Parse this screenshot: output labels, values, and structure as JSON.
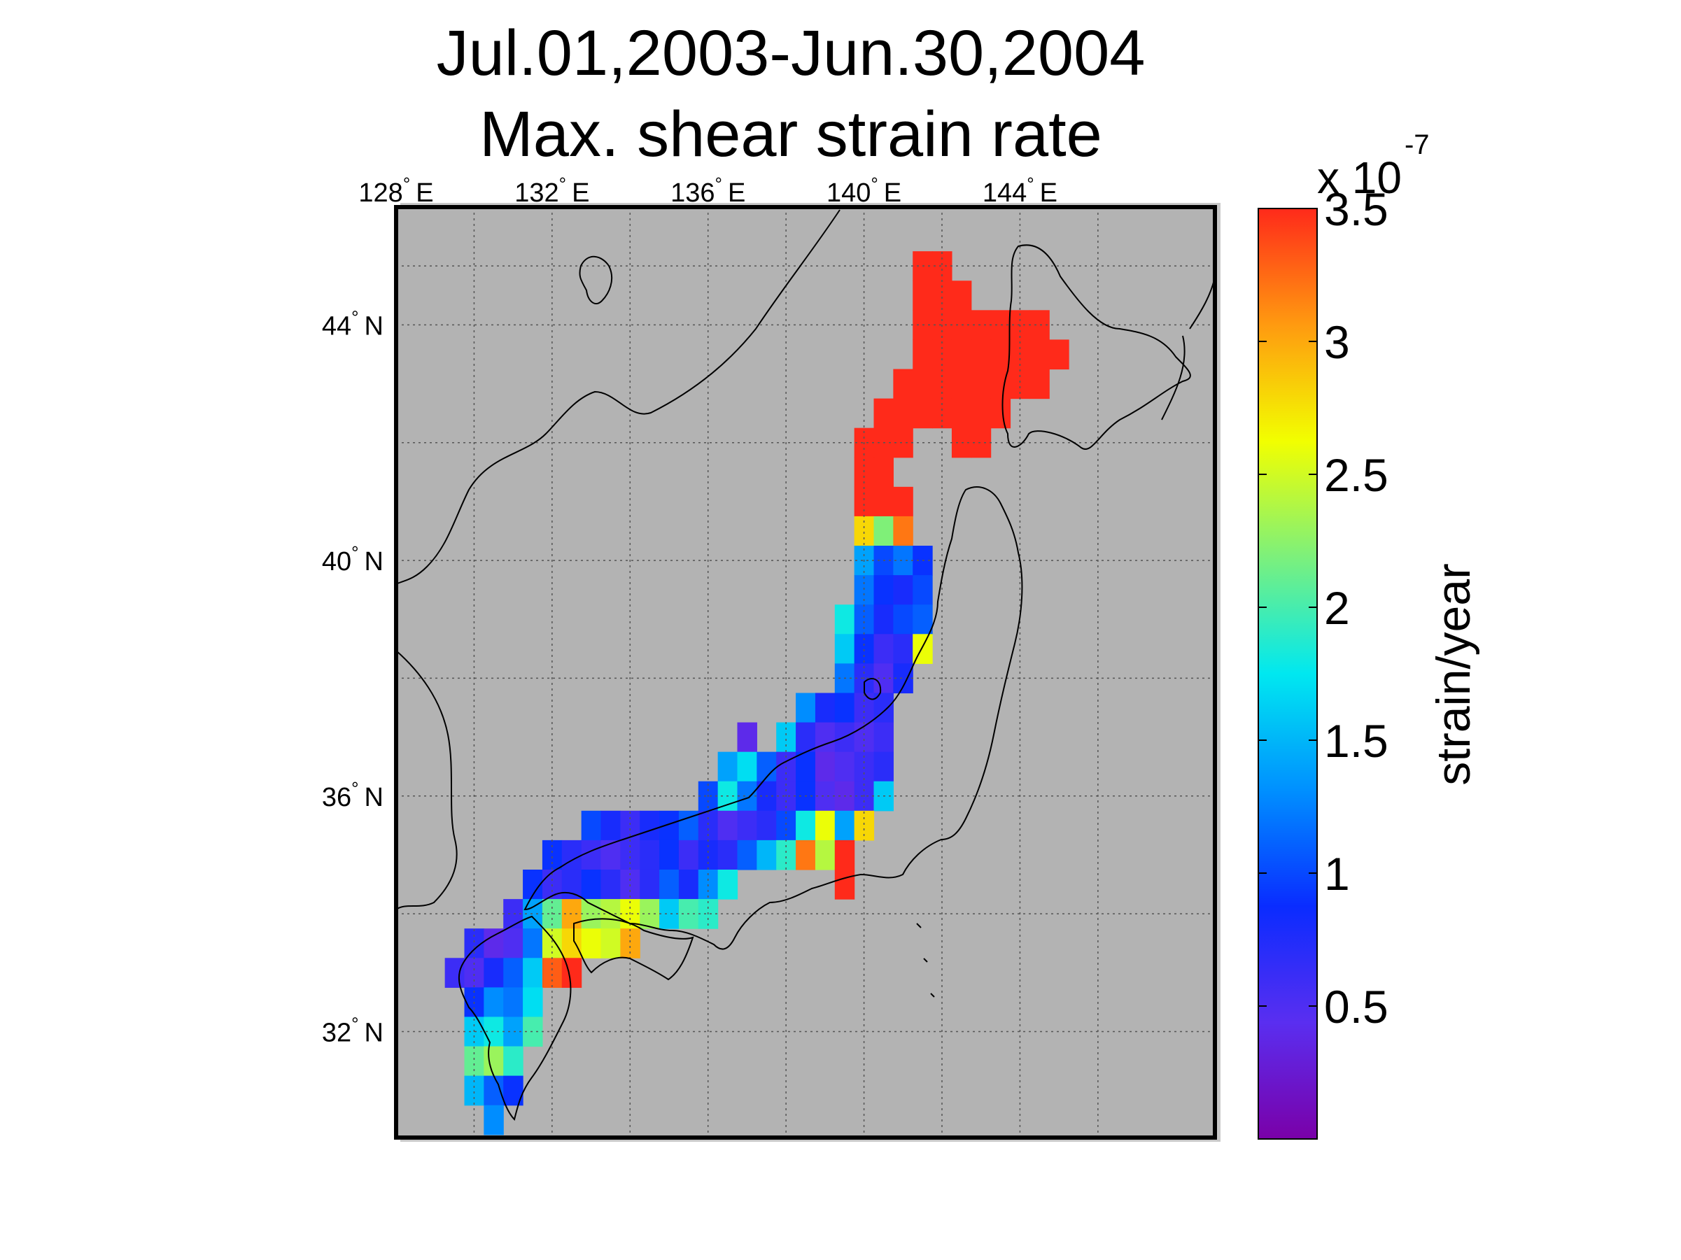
{
  "title": {
    "line1": "Jul.01,2003-Jun.30,2004",
    "line2": "Max. shear strain rate"
  },
  "map": {
    "background_color": "#b3b3b3",
    "coast_color": "#000000",
    "lon_range": [
      128,
      149
    ],
    "lat_range": [
      30.2,
      46
    ],
    "lon_ticks": [
      {
        "value": 128,
        "label": "128",
        "suffix": "E"
      },
      {
        "value": 132,
        "label": "132",
        "suffix": "E"
      },
      {
        "value": 136,
        "label": "136",
        "suffix": "E"
      },
      {
        "value": 140,
        "label": "140",
        "suffix": "E"
      },
      {
        "value": 144,
        "label": "144",
        "suffix": "E"
      }
    ],
    "lat_ticks": [
      {
        "value": 44,
        "label": "44",
        "suffix": "N"
      },
      {
        "value": 40,
        "label": "40",
        "suffix": "N"
      },
      {
        "value": 36,
        "label": "36",
        "suffix": "N"
      },
      {
        "value": 32,
        "label": "32",
        "suffix": "N"
      }
    ],
    "degree_symbol": "°",
    "grid": true
  },
  "colorbar": {
    "label": "strain/year",
    "multiplier_base": "x 10",
    "multiplier_exp": "-7",
    "range": [
      0,
      3.5
    ],
    "ticks": [
      {
        "value": 0.5,
        "label": "0.5"
      },
      {
        "value": 1,
        "label": "1"
      },
      {
        "value": 1.5,
        "label": "1.5"
      },
      {
        "value": 2,
        "label": "2"
      },
      {
        "value": 2.5,
        "label": "2.5"
      },
      {
        "value": 3,
        "label": "3"
      },
      {
        "value": 3.5,
        "label": "3.5"
      }
    ],
    "colormap": "jet",
    "stops": [
      "#7a00a8",
      "#5a2ef0",
      "#0a2cff",
      "#0090ff",
      "#00e8f0",
      "#7cf07c",
      "#f2ff00",
      "#ff9a10",
      "#ff2a1a"
    ]
  },
  "chart_data": {
    "type": "heatmap",
    "cell_size_deg": 0.5,
    "units": "strain/year x 10^-7",
    "cells": [
      [
        141.5,
        45.0,
        3.5
      ],
      [
        142.0,
        45.0,
        3.5
      ],
      [
        141.5,
        44.5,
        3.5
      ],
      [
        142.0,
        44.5,
        3.5
      ],
      [
        142.5,
        44.5,
        3.5
      ],
      [
        141.5,
        44.0,
        3.5
      ],
      [
        142.0,
        44.0,
        3.5
      ],
      [
        142.5,
        44.0,
        3.5
      ],
      [
        143.0,
        44.0,
        3.5
      ],
      [
        143.5,
        44.0,
        3.5
      ],
      [
        144.0,
        44.0,
        3.5
      ],
      [
        144.5,
        44.0,
        3.5
      ],
      [
        141.5,
        43.5,
        3.5
      ],
      [
        142.0,
        43.5,
        3.5
      ],
      [
        142.5,
        43.5,
        3.5
      ],
      [
        143.0,
        43.5,
        3.5
      ],
      [
        143.5,
        43.5,
        3.5
      ],
      [
        144.0,
        43.5,
        3.5
      ],
      [
        144.5,
        43.5,
        3.5
      ],
      [
        145.0,
        43.5,
        3.5
      ],
      [
        141.0,
        43.0,
        3.5
      ],
      [
        141.5,
        43.0,
        3.5
      ],
      [
        142.0,
        43.0,
        3.5
      ],
      [
        142.5,
        43.0,
        3.5
      ],
      [
        143.0,
        43.0,
        3.5
      ],
      [
        143.5,
        43.0,
        3.5
      ],
      [
        144.0,
        43.0,
        3.5
      ],
      [
        144.5,
        43.0,
        3.5
      ],
      [
        140.5,
        42.5,
        3.5
      ],
      [
        141.0,
        42.5,
        3.5
      ],
      [
        141.5,
        42.5,
        3.5
      ],
      [
        142.0,
        42.5,
        3.5
      ],
      [
        142.5,
        42.5,
        3.5
      ],
      [
        143.0,
        42.5,
        3.5
      ],
      [
        143.5,
        42.5,
        3.5
      ],
      [
        140.0,
        42.0,
        3.5
      ],
      [
        140.5,
        42.0,
        3.5
      ],
      [
        141.0,
        42.0,
        3.5
      ],
      [
        142.5,
        42.0,
        3.5
      ],
      [
        143.0,
        42.0,
        3.5
      ],
      [
        140.0,
        41.5,
        3.5
      ],
      [
        140.5,
        41.5,
        3.5
      ],
      [
        140.0,
        41.0,
        3.5
      ],
      [
        140.5,
        41.0,
        3.5
      ],
      [
        141.0,
        41.0,
        3.5
      ],
      [
        140.0,
        40.5,
        2.8
      ],
      [
        140.5,
        40.5,
        2.2
      ],
      [
        141.0,
        40.5,
        3.2
      ],
      [
        140.0,
        40.0,
        1.4
      ],
      [
        140.5,
        40.0,
        1.0
      ],
      [
        141.0,
        40.0,
        1.2
      ],
      [
        141.5,
        40.0,
        0.9
      ],
      [
        140.0,
        39.5,
        1.2
      ],
      [
        140.5,
        39.5,
        0.9
      ],
      [
        141.0,
        39.5,
        0.8
      ],
      [
        141.5,
        39.5,
        1.0
      ],
      [
        139.5,
        39.0,
        1.8
      ],
      [
        140.0,
        39.0,
        1.1
      ],
      [
        140.5,
        39.0,
        0.8
      ],
      [
        141.0,
        39.0,
        1.0
      ],
      [
        141.5,
        39.0,
        1.1
      ],
      [
        139.5,
        38.5,
        1.6
      ],
      [
        140.0,
        38.5,
        0.9
      ],
      [
        140.5,
        38.5,
        0.6
      ],
      [
        141.0,
        38.5,
        0.7
      ],
      [
        141.5,
        38.5,
        2.6
      ],
      [
        139.5,
        38.0,
        1.2
      ],
      [
        140.0,
        38.0,
        0.7
      ],
      [
        140.5,
        38.0,
        0.5
      ],
      [
        141.0,
        38.0,
        0.8
      ],
      [
        138.5,
        37.5,
        1.3
      ],
      [
        139.0,
        37.5,
        0.8
      ],
      [
        139.5,
        37.5,
        0.9
      ],
      [
        140.0,
        37.5,
        0.6
      ],
      [
        140.5,
        37.5,
        0.7
      ],
      [
        137.0,
        37.0,
        0.4
      ],
      [
        138.0,
        37.0,
        1.6
      ],
      [
        138.5,
        37.0,
        0.7
      ],
      [
        139.0,
        37.0,
        0.5
      ],
      [
        139.5,
        37.0,
        0.6
      ],
      [
        140.0,
        37.0,
        0.5
      ],
      [
        140.5,
        37.0,
        0.6
      ],
      [
        136.5,
        36.5,
        1.4
      ],
      [
        137.0,
        36.5,
        1.7
      ],
      [
        137.5,
        36.5,
        1.1
      ],
      [
        138.0,
        36.5,
        0.6
      ],
      [
        138.5,
        36.5,
        0.9
      ],
      [
        139.0,
        36.5,
        0.4
      ],
      [
        139.5,
        36.5,
        0.5
      ],
      [
        140.0,
        36.5,
        0.6
      ],
      [
        140.5,
        36.5,
        0.7
      ],
      [
        136.0,
        36.0,
        1.0
      ],
      [
        136.5,
        36.0,
        1.8
      ],
      [
        137.0,
        36.0,
        1.2
      ],
      [
        137.5,
        36.0,
        0.8
      ],
      [
        138.0,
        36.0,
        0.6
      ],
      [
        138.5,
        36.0,
        0.9
      ],
      [
        139.0,
        36.0,
        0.5
      ],
      [
        139.5,
        36.0,
        0.4
      ],
      [
        140.0,
        36.0,
        0.6
      ],
      [
        140.5,
        36.0,
        1.6
      ],
      [
        133.0,
        35.5,
        1.0
      ],
      [
        133.5,
        35.5,
        0.8
      ],
      [
        134.0,
        35.5,
        0.6
      ],
      [
        134.5,
        35.5,
        0.8
      ],
      [
        135.0,
        35.5,
        0.9
      ],
      [
        135.5,
        35.5,
        1.1
      ],
      [
        136.0,
        35.5,
        0.7
      ],
      [
        136.5,
        35.5,
        0.5
      ],
      [
        137.0,
        35.5,
        0.6
      ],
      [
        137.5,
        35.5,
        0.7
      ],
      [
        138.0,
        35.5,
        1.0
      ],
      [
        138.5,
        35.5,
        1.8
      ],
      [
        139.0,
        35.5,
        2.6
      ],
      [
        139.5,
        35.5,
        1.4
      ],
      [
        140.0,
        35.5,
        2.8
      ],
      [
        132.0,
        35.0,
        0.9
      ],
      [
        132.5,
        35.0,
        0.7
      ],
      [
        133.0,
        35.0,
        0.6
      ],
      [
        133.5,
        35.0,
        0.5
      ],
      [
        134.0,
        35.0,
        0.6
      ],
      [
        134.5,
        35.0,
        0.7
      ],
      [
        135.0,
        35.0,
        0.9
      ],
      [
        135.5,
        35.0,
        0.6
      ],
      [
        136.0,
        35.0,
        0.8
      ],
      [
        136.5,
        35.0,
        0.7
      ],
      [
        137.0,
        35.0,
        1.1
      ],
      [
        137.5,
        35.0,
        1.5
      ],
      [
        138.0,
        35.0,
        1.9
      ],
      [
        138.5,
        35.0,
        3.2
      ],
      [
        139.0,
        35.0,
        2.4
      ],
      [
        139.5,
        35.0,
        3.5
      ],
      [
        131.5,
        34.5,
        0.9
      ],
      [
        132.0,
        34.5,
        0.6
      ],
      [
        132.5,
        34.5,
        0.7
      ],
      [
        133.0,
        34.5,
        0.9
      ],
      [
        133.5,
        34.5,
        0.7
      ],
      [
        134.0,
        34.5,
        0.5
      ],
      [
        134.5,
        34.5,
        0.7
      ],
      [
        135.0,
        34.5,
        1.1
      ],
      [
        135.5,
        34.5,
        0.8
      ],
      [
        136.0,
        34.5,
        1.3
      ],
      [
        136.5,
        34.5,
        1.8
      ],
      [
        139.5,
        34.5,
        3.5
      ],
      [
        131.0,
        34.0,
        0.6
      ],
      [
        131.5,
        34.0,
        1.4
      ],
      [
        132.0,
        34.0,
        2.1
      ],
      [
        132.5,
        34.0,
        3.0
      ],
      [
        133.0,
        34.0,
        2.3
      ],
      [
        133.5,
        34.0,
        2.4
      ],
      [
        134.0,
        34.0,
        2.6
      ],
      [
        134.5,
        34.0,
        2.3
      ],
      [
        135.0,
        34.0,
        1.6
      ],
      [
        135.5,
        34.0,
        2.0
      ],
      [
        136.0,
        34.0,
        1.9
      ],
      [
        130.0,
        33.5,
        0.7
      ],
      [
        130.5,
        33.5,
        0.4
      ],
      [
        131.0,
        33.5,
        0.5
      ],
      [
        131.5,
        33.5,
        1.2
      ],
      [
        132.0,
        33.5,
        2.5
      ],
      [
        132.5,
        33.5,
        2.8
      ],
      [
        133.0,
        33.5,
        2.6
      ],
      [
        133.5,
        33.5,
        2.5
      ],
      [
        134.0,
        33.5,
        3.0
      ],
      [
        129.5,
        33.0,
        0.6
      ],
      [
        130.0,
        33.0,
        0.5
      ],
      [
        130.5,
        33.0,
        0.8
      ],
      [
        131.0,
        33.0,
        1.1
      ],
      [
        131.5,
        33.0,
        1.6
      ],
      [
        132.0,
        33.0,
        3.3
      ],
      [
        132.5,
        33.0,
        3.5
      ],
      [
        130.0,
        32.5,
        0.9
      ],
      [
        130.5,
        32.5,
        1.3
      ],
      [
        131.0,
        32.5,
        1.2
      ],
      [
        131.5,
        32.5,
        1.7
      ],
      [
        130.0,
        32.0,
        1.6
      ],
      [
        130.5,
        32.0,
        1.8
      ],
      [
        131.0,
        32.0,
        1.4
      ],
      [
        131.5,
        32.0,
        2.0
      ],
      [
        130.0,
        31.5,
        2.1
      ],
      [
        130.5,
        31.5,
        2.3
      ],
      [
        131.0,
        31.5,
        1.9
      ],
      [
        130.0,
        31.0,
        1.5
      ],
      [
        130.5,
        31.0,
        1.1
      ],
      [
        131.0,
        31.0,
        0.9
      ],
      [
        130.5,
        30.5,
        1.3
      ]
    ]
  }
}
